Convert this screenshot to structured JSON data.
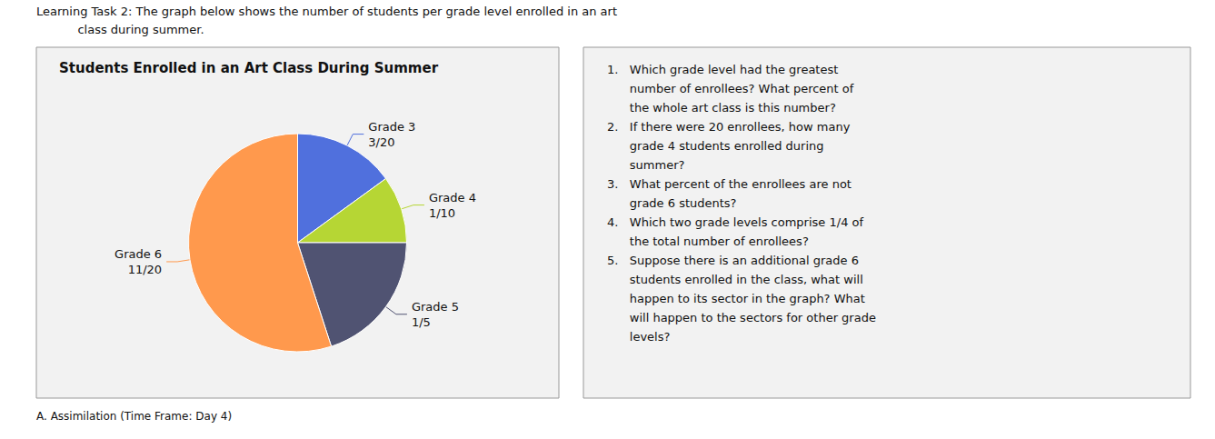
{
  "chart_data": {
    "type": "pie",
    "title": "Students Enrolled in an Art Class During Summer",
    "categories": [
      "Grade 3",
      "Grade 4",
      "Grade 5",
      "Grade 6"
    ],
    "values": [
      0.15,
      0.1,
      0.2,
      0.55
    ],
    "value_labels": [
      "3/20",
      "1/10",
      "1/5",
      "11/20"
    ],
    "data_labels": true,
    "annotations": [
      "Learning Task 2: The graph below shows the number of students per grade level enrolled in an art",
      "           class during summer.",
      "A. Assimilation (Time Frame: Day 4)",
      "1.   Which grade level had the greatest\n      number of enrollees? What percent of\n      the whole art class is this number?\n2.   If there were 20 enrollees, how many\n      grade 4 students enrolled during\n      summer?\n3.   What percent of the enrollees are not\n      grade 6 students?\n4.   Which two grade levels comprise 1/4 of\n      the total number of enrollees?\n5.   Suppose there is an additional grade 6\n      students enrolled in the class, what will\n      happen to its sector in the graph? What\n      will happen to the sectors for other grade\n      levels?"
    ]
  }
}
